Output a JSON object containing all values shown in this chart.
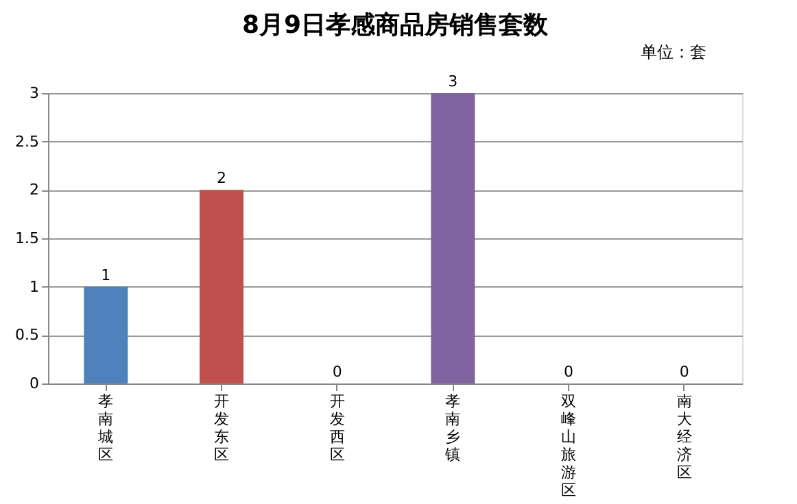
{
  "chart_data": {
    "type": "bar",
    "title": "8月9日孝感商品房销售套数",
    "annotations": [
      "单位：套"
    ],
    "categories": [
      "孝南城区",
      "开发东区",
      "开发西区",
      "孝南乡镇",
      "双峰山旅游区",
      "南大经济区"
    ],
    "values": [
      1,
      2,
      0,
      3,
      0,
      0
    ],
    "colors": [
      "#4f81bd",
      "#c0504d",
      "#9bbb59",
      "#8064a2",
      "#4bacc6",
      "#f79646"
    ],
    "ylim": [
      0,
      3
    ],
    "yticks": [
      0,
      0.5,
      1,
      1.5,
      2,
      2.5,
      3
    ],
    "grid": "y",
    "data_labels": true
  }
}
